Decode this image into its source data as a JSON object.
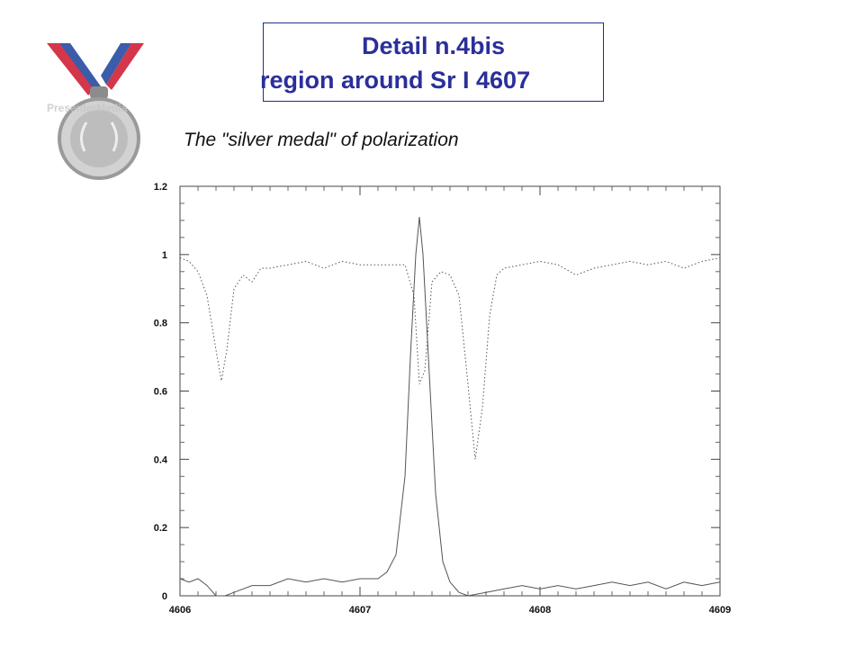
{
  "slide": {
    "title_line1": "Detail n.4bis",
    "title_line2": "region around Sr I 4607",
    "subtitle": "The \"silver medal\" of polarization",
    "title_color": "#2b2f9a"
  },
  "medal": {
    "icon": "silver-medal-icon",
    "watermark": "PresenterMedia",
    "ribbon_colors": [
      "#d4364a",
      "#3b5ca8",
      "#ffffff"
    ],
    "medal_color": "#b8b8b8"
  },
  "chart_data": {
    "type": "line",
    "title": "",
    "xlabel": "",
    "ylabel": "",
    "xlim": [
      4606,
      4609
    ],
    "ylim": [
      0,
      1.2
    ],
    "x_ticks": [
      "4606",
      "4607",
      "4608",
      "4609"
    ],
    "y_ticks": [
      "0",
      "0.2",
      "0.4",
      "0.6",
      "0.8",
      "1",
      "1.2"
    ],
    "grid": false,
    "legend": "none",
    "series": [
      {
        "style": "dotted",
        "x": [
          4606.0,
          4606.05,
          4606.1,
          4606.15,
          4606.2,
          4606.23,
          4606.26,
          4606.3,
          4606.35,
          4606.4,
          4606.45,
          4606.5,
          4606.6,
          4606.7,
          4606.8,
          4606.9,
          4607.0,
          4607.1,
          4607.2,
          4607.25,
          4607.3,
          4607.33,
          4607.36,
          4607.4,
          4607.45,
          4607.5,
          4607.55,
          4607.6,
          4607.64,
          4607.68,
          4607.72,
          4607.76,
          4607.8,
          4607.9,
          4608.0,
          4608.1,
          4608.2,
          4608.3,
          4608.4,
          4608.5,
          4608.6,
          4608.7,
          4608.8,
          4608.9,
          4609.0
        ],
        "y": [
          0.99,
          0.98,
          0.95,
          0.88,
          0.72,
          0.63,
          0.72,
          0.9,
          0.94,
          0.92,
          0.96,
          0.96,
          0.97,
          0.98,
          0.96,
          0.98,
          0.97,
          0.97,
          0.97,
          0.97,
          0.88,
          0.62,
          0.66,
          0.92,
          0.95,
          0.94,
          0.88,
          0.62,
          0.4,
          0.55,
          0.82,
          0.94,
          0.96,
          0.97,
          0.98,
          0.97,
          0.94,
          0.96,
          0.97,
          0.98,
          0.97,
          0.98,
          0.96,
          0.98,
          0.99
        ]
      },
      {
        "style": "solid",
        "x": [
          4606.0,
          4606.05,
          4606.1,
          4606.15,
          4606.2,
          4606.25,
          4606.3,
          4606.4,
          4606.5,
          4606.6,
          4606.7,
          4606.8,
          4606.9,
          4607.0,
          4607.1,
          4607.15,
          4607.2,
          4607.25,
          4607.28,
          4607.31,
          4607.33,
          4607.35,
          4607.38,
          4607.42,
          4607.46,
          4607.5,
          4607.55,
          4607.6,
          4607.7,
          4607.8,
          4607.9,
          4608.0,
          4608.1,
          4608.2,
          4608.3,
          4608.4,
          4608.5,
          4608.6,
          4608.7,
          4608.8,
          4608.9,
          4609.0
        ],
        "y": [
          0.05,
          0.04,
          0.05,
          0.03,
          0.0,
          -0.02,
          0.01,
          0.03,
          0.03,
          0.05,
          0.04,
          0.05,
          0.04,
          0.05,
          0.05,
          0.07,
          0.12,
          0.35,
          0.7,
          1.0,
          1.11,
          1.0,
          0.7,
          0.3,
          0.1,
          0.04,
          0.01,
          0.0,
          0.01,
          0.02,
          0.03,
          0.02,
          0.03,
          0.02,
          0.03,
          0.04,
          0.03,
          0.04,
          0.02,
          0.04,
          0.03,
          0.04
        ]
      }
    ]
  }
}
